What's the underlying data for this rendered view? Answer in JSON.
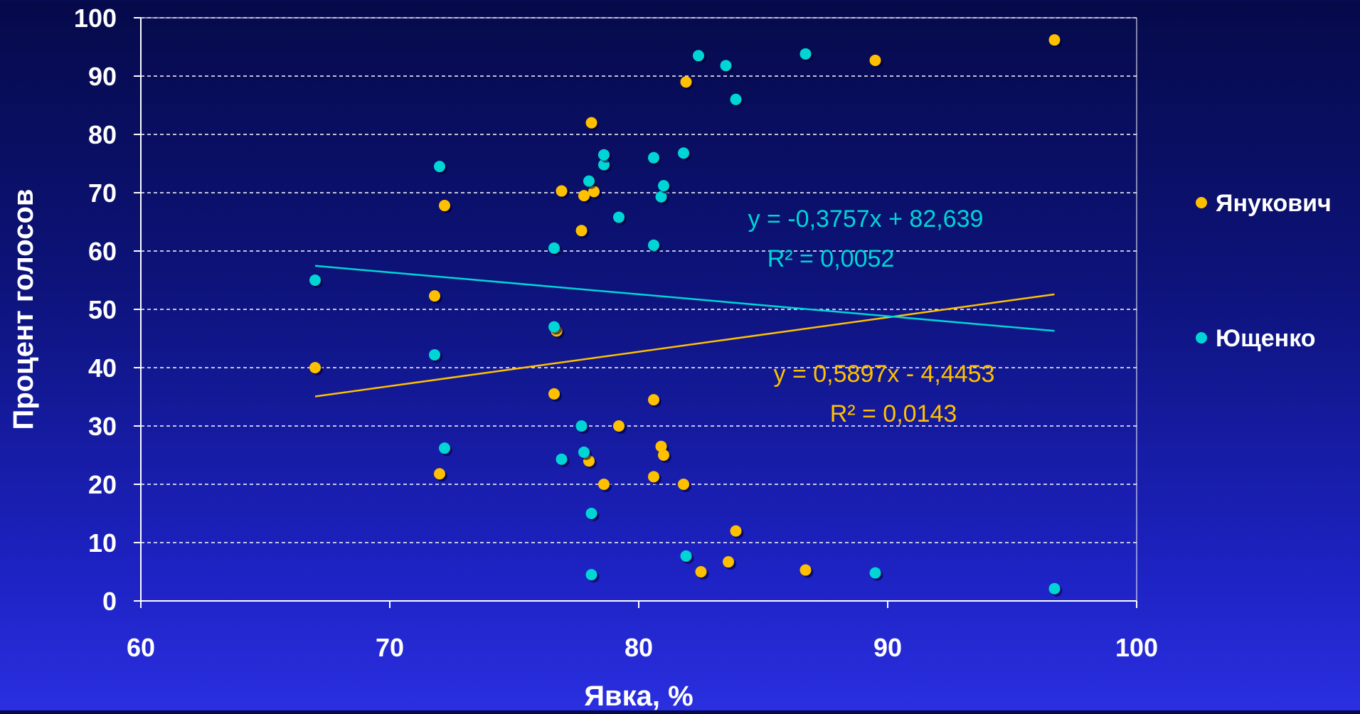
{
  "chart_data": {
    "type": "scatter",
    "title": "",
    "xlabel": "Явка, %",
    "ylabel": "Процент голосов",
    "xlim": [
      60,
      100
    ],
    "ylim": [
      0,
      100
    ],
    "xticks": [
      60,
      70,
      80,
      90,
      100
    ],
    "yticks": [
      0,
      10,
      20,
      30,
      40,
      50,
      60,
      70,
      80,
      90,
      100
    ],
    "grid": "horizontal dashed",
    "legend_position": "right",
    "series": [
      {
        "name": "Янукович",
        "color": "#ffc000",
        "points": [
          [
            67.0,
            40.0
          ],
          [
            71.8,
            52.3
          ],
          [
            72.0,
            21.8
          ],
          [
            72.2,
            67.8
          ],
          [
            76.6,
            35.5
          ],
          [
            76.7,
            46.3
          ],
          [
            76.9,
            70.3
          ],
          [
            77.7,
            63.5
          ],
          [
            77.8,
            69.5
          ],
          [
            78.0,
            24.0
          ],
          [
            78.1,
            82.0
          ],
          [
            78.2,
            70.2
          ],
          [
            78.6,
            20.0
          ],
          [
            79.2,
            30.0
          ],
          [
            80.6,
            34.5
          ],
          [
            80.6,
            21.3
          ],
          [
            80.9,
            26.5
          ],
          [
            81.0,
            25.0
          ],
          [
            81.8,
            20.0
          ],
          [
            81.9,
            89.0
          ],
          [
            82.5,
            5.0
          ],
          [
            83.6,
            6.7
          ],
          [
            83.9,
            12.0
          ],
          [
            86.7,
            5.3
          ],
          [
            89.5,
            92.7
          ],
          [
            96.7,
            96.2
          ]
        ],
        "trend": {
          "equation": "y = 0,5897x - 4,4453",
          "r2": "R² = 0,0143",
          "slope": 0.5897,
          "intercept": -4.4453,
          "x_range": [
            67.0,
            96.7
          ]
        }
      },
      {
        "name": "Ющенко",
        "color": "#00d5d5",
        "points": [
          [
            67.0,
            55.0
          ],
          [
            71.8,
            42.2
          ],
          [
            72.0,
            74.5
          ],
          [
            72.2,
            26.2
          ],
          [
            76.6,
            60.5
          ],
          [
            76.6,
            47.0
          ],
          [
            76.9,
            24.3
          ],
          [
            77.7,
            30.0
          ],
          [
            77.8,
            25.5
          ],
          [
            78.0,
            72.0
          ],
          [
            78.1,
            15.0
          ],
          [
            78.1,
            4.5
          ],
          [
            78.6,
            74.8
          ],
          [
            78.6,
            76.5
          ],
          [
            79.2,
            65.8
          ],
          [
            80.6,
            61.0
          ],
          [
            80.6,
            76.0
          ],
          [
            80.9,
            69.3
          ],
          [
            81.0,
            71.2
          ],
          [
            81.8,
            76.8
          ],
          [
            81.9,
            7.7
          ],
          [
            82.4,
            93.5
          ],
          [
            83.5,
            91.8
          ],
          [
            83.9,
            86.0
          ],
          [
            86.7,
            93.8
          ],
          [
            89.5,
            4.8
          ],
          [
            96.7,
            2.1
          ]
        ],
        "trend": {
          "equation": "y = -0,3757x + 82,639",
          "r2": "R² = 0,0052",
          "slope": -0.3757,
          "intercept": 82.639,
          "x_range": [
            67.0,
            96.7
          ]
        }
      }
    ]
  }
}
